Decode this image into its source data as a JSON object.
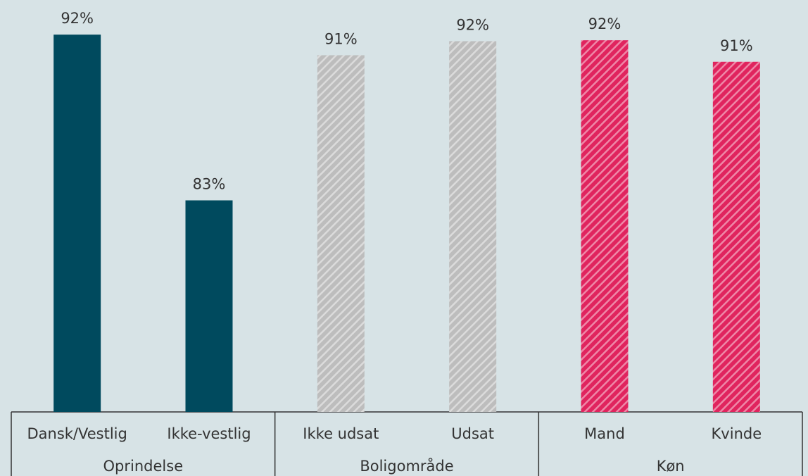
{
  "chart_data": {
    "type": "bar",
    "ylim": [
      72,
      94
    ],
    "groups": [
      {
        "name": "Oprindelse",
        "categories": [
          "Dansk/Vestlig",
          "Ikke-vestlig"
        ],
        "values": [
          92.15,
          83.3
        ],
        "value_labels": [
          "92%",
          "83%"
        ],
        "color": "#004a5e",
        "pattern": "solid"
      },
      {
        "name": "Boligområde",
        "categories": [
          "Ikke udsat",
          "Udsat"
        ],
        "values": [
          91.05,
          91.8
        ],
        "value_labels": [
          "91%",
          "92%"
        ],
        "color": "#bdbdbd",
        "pattern": "hatch"
      },
      {
        "name": "Køn",
        "categories": [
          "Mand",
          "Kvinde"
        ],
        "values": [
          91.85,
          90.7
        ],
        "value_labels": [
          "92%",
          "91%"
        ],
        "color": "#e0245e",
        "pattern": "hatch"
      }
    ]
  }
}
